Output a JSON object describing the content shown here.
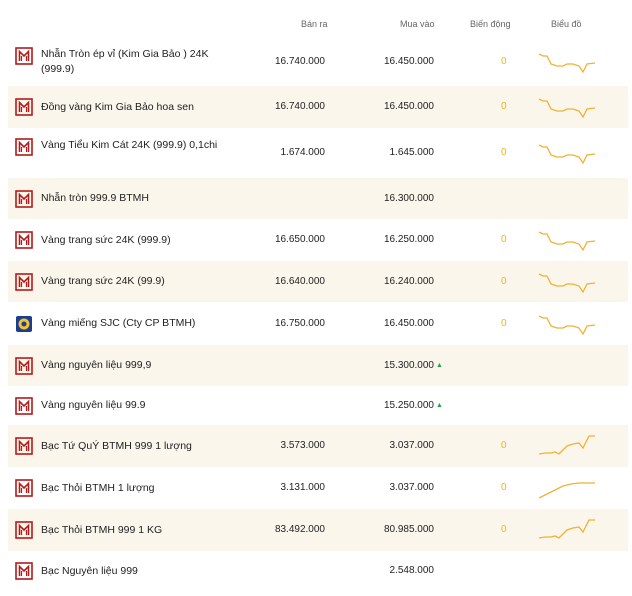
{
  "header": {
    "sell": "Bán ra",
    "buy": "Mua vào",
    "change": "Biến động",
    "chart": "Biểu đồ"
  },
  "colors": {
    "accent": "#f0b232",
    "row_alt": "#fbf6ec",
    "logo": "#b31b1b",
    "up": "#1ea64b"
  },
  "rows": [
    {
      "logo": "btmh-logo-icon",
      "name": "Nhẫn Tròn ép vỉ (Kim Gia Bảo ) 24K (999.9)",
      "sell": "16.740.000",
      "buy": "16.450.000",
      "change": "0",
      "trend": "down"
    },
    {
      "logo": "btmh-logo-icon",
      "name": "Đồng vàng Kim Gia Bảo hoa sen",
      "sell": "16.740.000",
      "buy": "16.450.000",
      "change": "0",
      "trend": "down"
    },
    {
      "logo": "btmh-logo-icon",
      "name": "Vàng Tiểu Kim Cát 24K (999.9) 0,1chi",
      "sell": "1.674.000",
      "buy": "1.645.000",
      "change": "0",
      "trend": "down"
    },
    {
      "logo": "btmh-logo-icon",
      "name": "Nhẫn tròn 999.9 BTMH",
      "sell": "",
      "buy": "16.300.000",
      "change": "",
      "trend": ""
    },
    {
      "logo": "btmh-logo-icon",
      "name": "Vàng trang sức 24K (999.9)",
      "sell": "16.650.000",
      "buy": "16.250.000",
      "change": "0",
      "trend": "down"
    },
    {
      "logo": "btmh-logo-icon",
      "name": "Vàng trang sức 24K (99.9)",
      "sell": "16.640.000",
      "buy": "16.240.000",
      "change": "0",
      "trend": "down"
    },
    {
      "logo": "sjc-logo-icon",
      "name": "Vàng miếng SJC (Cty CP BTMH)",
      "sell": "16.750.000",
      "buy": "16.450.000",
      "change": "0",
      "trend": "down"
    },
    {
      "logo": "btmh-logo-icon",
      "name": "Vàng nguyên liệu 999,9",
      "sell": "",
      "buy": "15.300.000",
      "buy_up": "▲",
      "change": "",
      "trend": ""
    },
    {
      "logo": "btmh-logo-icon",
      "name": "Vàng nguyên liệu 99.9",
      "sell": "",
      "buy": "15.250.000",
      "buy_up": "▲",
      "change": "",
      "trend": ""
    },
    {
      "logo": "btmh-logo-icon",
      "name": "Bạc Tứ QuÝ BTMH 999 1 lượng",
      "sell": "3.573.000",
      "buy": "3.037.000",
      "change": "0",
      "trend": "up"
    },
    {
      "logo": "btmh-logo-icon",
      "name": "Bạc Thỏi BTMH 1 lượng",
      "sell": "3.131.000",
      "buy": "3.037.000",
      "change": "0",
      "trend": "up-flat"
    },
    {
      "logo": "btmh-logo-icon",
      "name": "Bạc Thỏi BTMH 999 1 KG",
      "sell": "83.492.000",
      "buy": "80.985.000",
      "change": "0",
      "trend": "up"
    },
    {
      "logo": "btmh-logo-icon",
      "name": "Bạc Nguyên liệu 999",
      "sell": "",
      "buy": "2.548.000",
      "change": "",
      "trend": ""
    }
  ]
}
